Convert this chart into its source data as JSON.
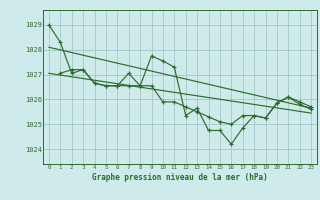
{
  "title": "Graphe pression niveau de la mer (hPa)",
  "bg_color": "#ceeaea",
  "grid_color": "#9bbfbf",
  "line_color": "#2d6b2d",
  "xlim": [
    -0.5,
    23.5
  ],
  "ylim": [
    1023.4,
    1029.6
  ],
  "yticks": [
    1024,
    1025,
    1026,
    1027,
    1028,
    1029
  ],
  "xticks": [
    0,
    1,
    2,
    3,
    4,
    5,
    6,
    7,
    8,
    9,
    10,
    11,
    12,
    13,
    14,
    15,
    16,
    17,
    18,
    19,
    20,
    21,
    22,
    23
  ],
  "series1_x": [
    0,
    1,
    2,
    3,
    4,
    5,
    6,
    7,
    8,
    9,
    10,
    11,
    12,
    13,
    14,
    15,
    16,
    17,
    18,
    19,
    20,
    21,
    22,
    23
  ],
  "series1_y": [
    1029.0,
    1028.3,
    1027.05,
    1027.2,
    1026.65,
    1026.55,
    1026.55,
    1027.05,
    1026.55,
    1027.75,
    1027.55,
    1027.3,
    1025.35,
    1025.65,
    1024.75,
    1024.75,
    1024.2,
    1024.85,
    1025.35,
    1025.25,
    1025.85,
    1026.1,
    1025.8,
    1025.6
  ],
  "series2_x": [
    1,
    2,
    3,
    4,
    5,
    6,
    7,
    8,
    9,
    10,
    11,
    12,
    13,
    14,
    15,
    16,
    17,
    18,
    19,
    20,
    21,
    22,
    23
  ],
  "series2_y": [
    1027.05,
    1027.2,
    1027.2,
    1026.65,
    1026.55,
    1026.55,
    1026.55,
    1026.55,
    1026.55,
    1025.9,
    1025.9,
    1025.7,
    1025.5,
    1025.3,
    1025.1,
    1025.0,
    1025.35,
    1025.35,
    1025.25,
    1025.85,
    1026.1,
    1025.9,
    1025.7
  ],
  "trend1_x": [
    0,
    23
  ],
  "trend1_y": [
    1028.1,
    1025.65
  ],
  "trend2_x": [
    0,
    23
  ],
  "trend2_y": [
    1027.05,
    1025.45
  ]
}
